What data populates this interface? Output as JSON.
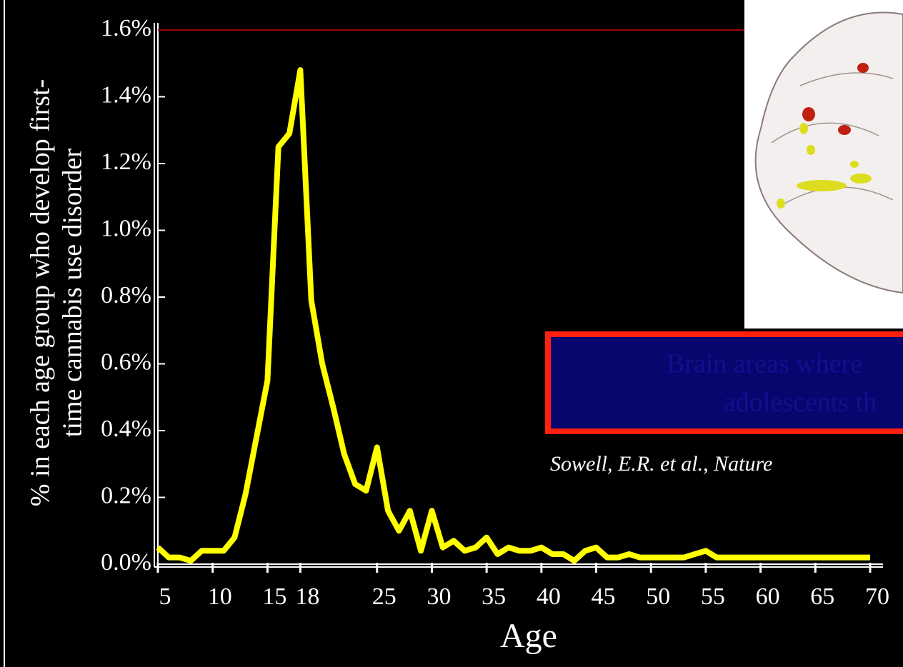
{
  "chart_data": {
    "type": "line",
    "y_label_lines": [
      "% in each age group who develop first-",
      "time cannabis use disorder"
    ],
    "x_label": "Age",
    "caption_lines": [
      "Brain areas where",
      "adolescents th"
    ],
    "citation": "Sowell, E.R. et al., Nature",
    "x": [
      5,
      6,
      7,
      8,
      9,
      10,
      11,
      12,
      13,
      14,
      15,
      16,
      17,
      18,
      19,
      20,
      21,
      22,
      23,
      24,
      25,
      26,
      27,
      28,
      29,
      30,
      31,
      32,
      33,
      34,
      35,
      36,
      37,
      38,
      39,
      40,
      41,
      42,
      43,
      44,
      45,
      46,
      47,
      48,
      49,
      50,
      51,
      52,
      53,
      54,
      55,
      56,
      57,
      58,
      59,
      60,
      61,
      62,
      63,
      64,
      65,
      66,
      67,
      68,
      69,
      70
    ],
    "series": [
      {
        "color": "#ffff00",
        "values": [
          0.05,
          0.02,
          0.02,
          0.01,
          0.04,
          0.04,
          0.04,
          0.08,
          0.21,
          0.38,
          0.55,
          1.25,
          1.29,
          1.48,
          0.79,
          0.6,
          0.47,
          0.33,
          0.24,
          0.22,
          0.35,
          0.16,
          0.1,
          0.16,
          0.04,
          0.16,
          0.05,
          0.07,
          0.04,
          0.05,
          0.08,
          0.03,
          0.05,
          0.04,
          0.04,
          0.05,
          0.03,
          0.03,
          0.01,
          0.04,
          0.05,
          0.02,
          0.02,
          0.03,
          0.02,
          0.02,
          0.02,
          0.02,
          0.02,
          0.03,
          0.04,
          0.02,
          0.02,
          0.02,
          0.02,
          0.02,
          0.02,
          0.02,
          0.02,
          0.02,
          0.02,
          0.02,
          0.02,
          0.02,
          0.02,
          0.02
        ]
      }
    ],
    "xlim": [
      5,
      70
    ],
    "xticks": [
      5,
      10,
      15,
      18,
      25,
      30,
      35,
      40,
      45,
      50,
      55,
      60,
      65,
      70
    ],
    "ylim": [
      0,
      1.6
    ],
    "yticks": [
      {
        "value": 0,
        "label": "0.0%"
      },
      {
        "value": 0.2,
        "label": "0.2%"
      },
      {
        "value": 0.4,
        "label": "0.4%"
      },
      {
        "value": 0.6,
        "label": "0.6%"
      },
      {
        "value": 0.8,
        "label": "0.8%"
      },
      {
        "value": 1.0,
        "label": "1.0%"
      },
      {
        "value": 1.2,
        "label": "1.2%"
      },
      {
        "value": 1.4,
        "label": "1.4%"
      },
      {
        "value": 1.6,
        "label": "1.6%"
      }
    ],
    "top_line_color": "#a00000"
  }
}
